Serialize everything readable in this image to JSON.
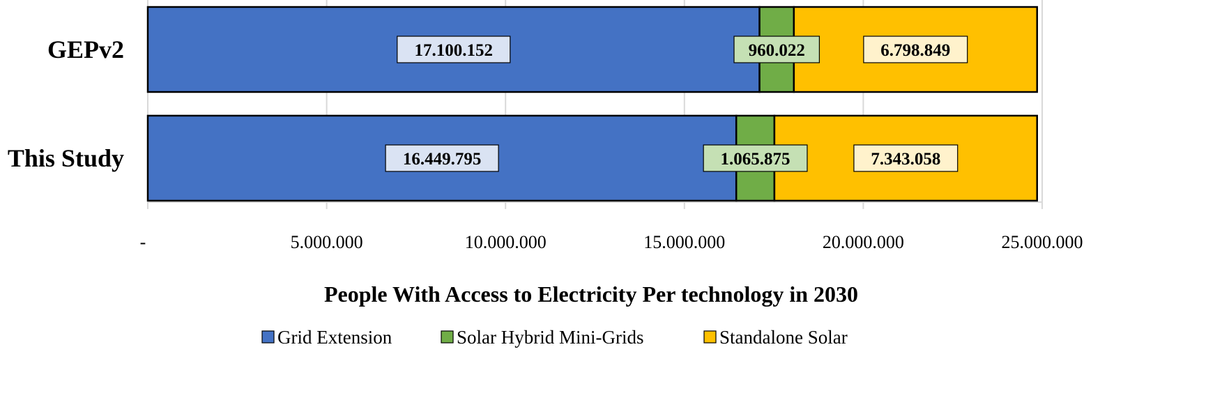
{
  "chart_data": {
    "type": "bar",
    "orientation": "horizontal",
    "stacked": true,
    "title": "",
    "xlabel": "People With Access to Electricity Per technology in 2030",
    "ylabel": "",
    "categories": [
      "GEPv2",
      "This Study"
    ],
    "series": [
      {
        "name": "Grid Extension",
        "color": "#4472C4",
        "label_bg": "#DAE3F3",
        "values": [
          17100152,
          16449795
        ],
        "labels": [
          "17.100.152",
          "16.449.795"
        ]
      },
      {
        "name": "Solar Hybrid Mini-Grids",
        "color": "#70AD47",
        "label_bg": "#C5E0B4",
        "values": [
          960022,
          1065875
        ],
        "labels": [
          "960.022",
          "1.065.875"
        ]
      },
      {
        "name": "Standalone Solar",
        "color": "#FFC000",
        "label_bg": "#FFF2CC",
        "values": [
          6798849,
          7343058
        ],
        "labels": [
          "6.798.849",
          "7.343.058"
        ]
      }
    ],
    "xlim": [
      0,
      25000000
    ],
    "xticks": [
      0,
      5000000,
      10000000,
      15000000,
      20000000,
      25000000
    ],
    "xtick_labels": [
      "-",
      "5.000.000",
      "10.000.000",
      "15.000.000",
      "20.000.000",
      "25.000.000"
    ],
    "grid": true,
    "legend": "bottom"
  }
}
